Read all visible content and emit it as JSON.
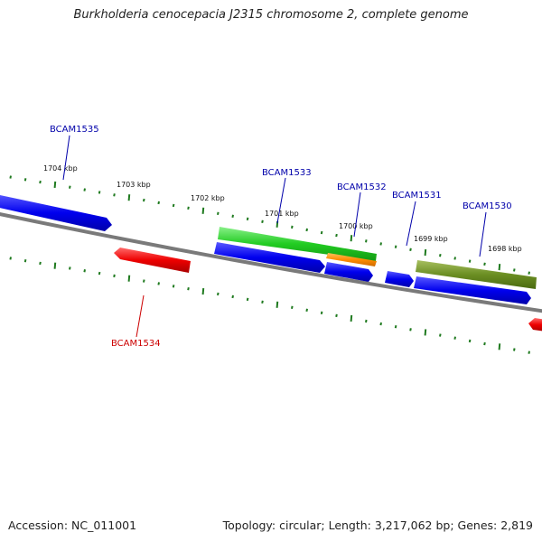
{
  "title": "Burkholderia cenocepacia J2315 chromosome 2, complete genome",
  "footer": {
    "accession": "Accession: NC_011001",
    "summary": "Topology: circular; Length: 3,217,062 bp; Genes: 2,819"
  },
  "ruler": {
    "labels": [
      "1704 kbp",
      "1703 kbp",
      "1702 kbp",
      "1701 kbp",
      "1700 kbp",
      "1699 kbp",
      "1698 kbp"
    ]
  },
  "genes": [
    {
      "name": "BCAM1535",
      "strand": "forward",
      "color": "#0000cc"
    },
    {
      "name": "BCAM1534",
      "strand": "reverse",
      "color": "#cc0000"
    },
    {
      "name": "BCAM1533",
      "strand": "forward",
      "color": "#0000cc"
    },
    {
      "name": "BCAM1532",
      "strand": "forward",
      "color": "#0000cc"
    },
    {
      "name": "BCAM1531",
      "strand": "forward",
      "color": "#0000cc"
    },
    {
      "name": "BCAM1530",
      "strand": "forward",
      "color": "#0000cc"
    }
  ],
  "colors": {
    "forward_cds": "#1010ee",
    "reverse_cds": "#ee1010",
    "feature_green": "#33cc33",
    "feature_orange": "#ff8800",
    "feature_olive": "#6b8e23",
    "backbone": "#808080",
    "ticks": "#1f7a1f"
  }
}
